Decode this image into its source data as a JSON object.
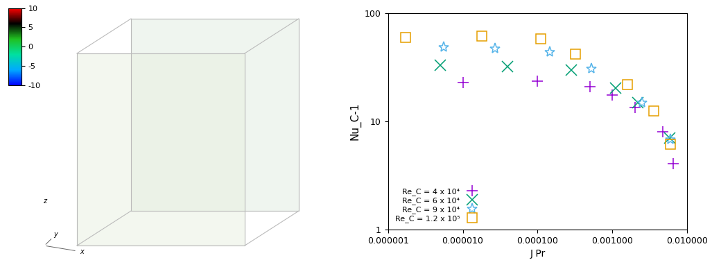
{
  "chart_data": [
    {
      "type": "volume",
      "colorbar": {
        "range": [
          -10,
          10
        ],
        "ticks": [
          10,
          5,
          0,
          -5,
          -10
        ]
      },
      "axes_labels": [
        "x",
        "y",
        "z"
      ]
    },
    {
      "type": "scatter",
      "xlabel": "J Pr",
      "ylabel": "Nu_C-1",
      "log": true,
      "xlim": [
        1e-06,
        0.01
      ],
      "xticks": [
        {
          "value": 1e-06,
          "label": "0.000001"
        },
        {
          "value": 1e-05,
          "label": "0.000010"
        },
        {
          "value": 0.0001,
          "label": "0.000100"
        },
        {
          "value": 0.001,
          "label": "0.001000"
        },
        {
          "value": 0.01,
          "label": "0.010000"
        }
      ],
      "ylim": [
        1,
        100
      ],
      "yticks": [
        1,
        10,
        100
      ],
      "legend": "lower left",
      "series": [
        {
          "name": "Re_C = 4 x 10⁴",
          "color": "#9400d3",
          "marker": "plus",
          "x": [
            1e-05,
            0.0001,
            0.0005,
            0.001,
            0.002,
            0.0047,
            0.0065
          ],
          "values": [
            23,
            23.5,
            21,
            17.5,
            13.5,
            8,
            4.1
          ]
        },
        {
          "name": "Re_C = 6 x 10⁴",
          "color": "#009e73",
          "marker": "cross",
          "x": [
            5e-06,
            4e-05,
            0.00028,
            0.0011,
            0.0022,
            0.0058
          ],
          "values": [
            33,
            32,
            30,
            20.5,
            15,
            7
          ]
        },
        {
          "name": "Re_C = 9 x 10⁴",
          "color": "#56b4e9",
          "marker": "star",
          "x": [
            5.5e-06,
            2.7e-05,
            0.000145,
            0.00052,
            0.0025,
            0.006
          ],
          "values": [
            49,
            47,
            44,
            31,
            15,
            6.8
          ]
        },
        {
          "name": "Re_C = 1.2 x 10⁵",
          "color": "#e69f00",
          "marker": "square",
          "x": [
            1.7e-06,
            1.8e-05,
            0.00011,
            0.00032,
            0.0016,
            0.0036,
            0.006
          ],
          "values": [
            60,
            62,
            58,
            42,
            22,
            12.5,
            6.2
          ]
        }
      ]
    }
  ]
}
